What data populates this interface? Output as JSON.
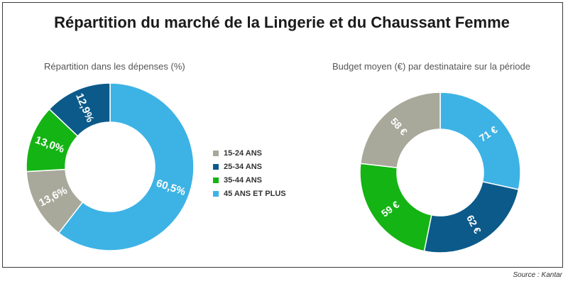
{
  "title": "Répartition du marché de la Lingerie et du Chaussant Femme",
  "source": "Source : Kantar",
  "legend": [
    {
      "label": "15-24 ANS",
      "color": "#a8a99b"
    },
    {
      "label": "25-34 ANS",
      "color": "#0c5a8a"
    },
    {
      "label": "35-44 ANS",
      "color": "#14b414"
    },
    {
      "label": "45 ANS ET PLUS",
      "color": "#3db3e5"
    }
  ],
  "chart_data": [
    {
      "type": "pie",
      "title": "Répartition dans les dépenses (%)",
      "categories": [
        "15-24 ANS",
        "25-34 ANS",
        "35-44 ANS",
        "45 ANS ET PLUS"
      ],
      "values": [
        13.6,
        12.9,
        13.0,
        60.5
      ],
      "labels": [
        "13,6%",
        "12,9%",
        "13,0%",
        "60,5%"
      ],
      "colors": [
        "#a8a99b",
        "#0c5a8a",
        "#14b414",
        "#3db3e5"
      ],
      "donut": true
    },
    {
      "type": "pie",
      "title": "Budget moyen (€) par destinataire sur la période",
      "categories": [
        "15-24 ANS",
        "25-34 ANS",
        "35-44 ANS",
        "45 ANS ET PLUS"
      ],
      "values": [
        58,
        62,
        59,
        71
      ],
      "labels": [
        "58 €",
        "62 €",
        "59 €",
        "71 €"
      ],
      "colors": [
        "#a8a99b",
        "#0c5a8a",
        "#14b414",
        "#3db3e5"
      ],
      "donut": true
    }
  ]
}
